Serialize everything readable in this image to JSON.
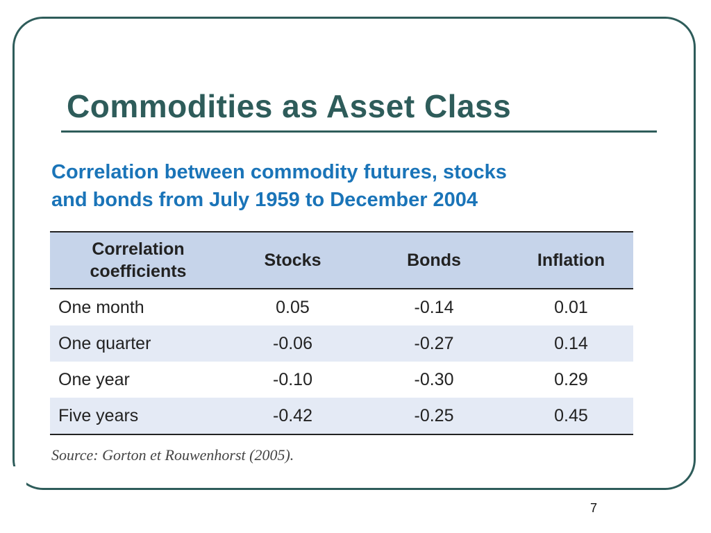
{
  "slide": {
    "title": "Commodities as Asset Class",
    "subtitle_line1": "Correlation between commodity futures, stocks",
    "subtitle_line2": "and bonds from July 1959 to December 2004",
    "source": "Source: Gorton et Rouwenhorst (2005).",
    "page_number": "7"
  },
  "table": {
    "header": {
      "label_line1": "Correlation",
      "label_line2": "coefficients",
      "stocks": "Stocks",
      "bonds": "Bonds",
      "inflation": "Inflation"
    },
    "rows": [
      {
        "label": "One month",
        "stocks": "0.05",
        "bonds": "-0.14",
        "inflation": "0.01"
      },
      {
        "label": "One quarter",
        "stocks": "-0.06",
        "bonds": "-0.27",
        "inflation": "0.14"
      },
      {
        "label": "One year",
        "stocks": "-0.10",
        "bonds": "-0.30",
        "inflation": "0.29"
      },
      {
        "label": "Five years",
        "stocks": "-0.42",
        "bonds": "-0.25",
        "inflation": "0.45"
      }
    ]
  },
  "colors": {
    "title": "#2e5c5a",
    "subtitle": "#1a74b8",
    "header_bg": "#c6d4ea",
    "alt_row_bg": "#e4eaf5"
  }
}
